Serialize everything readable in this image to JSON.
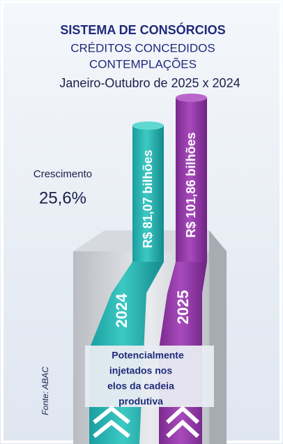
{
  "header": {
    "title": "SISTEMA DE CONSÓRCIOS",
    "subtitle_lines": [
      "CRÉDITOS CONCEDIDOS",
      "CONTEMPLAÇÕES"
    ],
    "period": "Janeiro-Outubro de 2025 x 2024"
  },
  "growth": {
    "label": "Crescimento",
    "value": "25,6%"
  },
  "columns": [
    {
      "year": "2024",
      "label": "R$ 81,07 bilhões"
    },
    {
      "year": "2025",
      "label": "R$ 101,86 bilhões"
    }
  ],
  "note_lines": [
    "Potencialmente",
    "injetados nos",
    "elos da cadeia",
    "produtiva"
  ],
  "source": "Fonte: ABAC"
}
